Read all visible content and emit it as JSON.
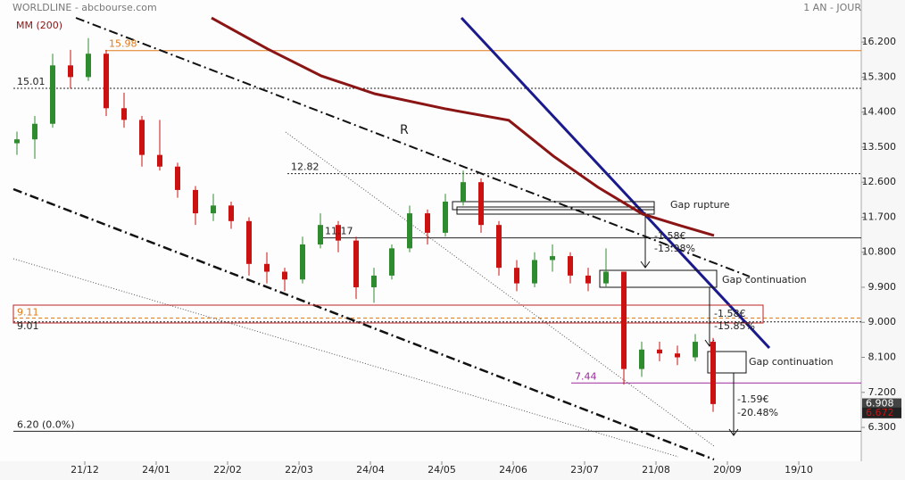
{
  "chart_data": {
    "type": "candlestick",
    "title": "WORLDLINE - abcbourse.com",
    "period": "1 AN - JOUR",
    "up_color": "#2e8b2e",
    "down_color": "#cc1111",
    "x": [
      -19,
      -14,
      -9,
      -4,
      1,
      6,
      11,
      16,
      21,
      26,
      31,
      36,
      41,
      46,
      51,
      56,
      61,
      66,
      71,
      76,
      81,
      86,
      91,
      96,
      101,
      106,
      111,
      116,
      121,
      126,
      131,
      136,
      141,
      146,
      151,
      156,
      161,
      166,
      171,
      176
    ],
    "open": [
      13.6,
      13.7,
      14.1,
      15.6,
      15.3,
      15.9,
      14.5,
      14.2,
      13.3,
      13.0,
      12.4,
      11.8,
      12.0,
      11.6,
      10.5,
      10.3,
      10.1,
      11.0,
      11.5,
      11.1,
      9.9,
      10.2,
      10.9,
      11.8,
      11.3,
      12.1,
      12.6,
      11.5,
      10.4,
      10.0,
      10.6,
      10.7,
      10.2,
      10.0,
      10.3,
      7.8,
      8.3,
      8.2,
      8.1,
      8.5
    ],
    "high": [
      13.9,
      14.3,
      15.9,
      16.0,
      16.3,
      16.0,
      14.9,
      14.3,
      14.2,
      13.1,
      12.5,
      12.3,
      12.1,
      11.7,
      10.8,
      10.4,
      11.2,
      11.8,
      11.6,
      11.2,
      10.4,
      11.0,
      12.0,
      11.9,
      12.3,
      12.9,
      12.7,
      11.6,
      10.6,
      10.8,
      11.0,
      10.8,
      10.4,
      10.9,
      10.3,
      8.5,
      8.5,
      8.4,
      8.7,
      8.6
    ],
    "low": [
      13.3,
      13.2,
      14.0,
      15.0,
      15.2,
      14.3,
      14.0,
      13.0,
      12.9,
      12.2,
      11.5,
      11.6,
      11.4,
      10.2,
      10.0,
      9.8,
      10.0,
      10.9,
      10.8,
      9.6,
      9.5,
      10.1,
      10.8,
      11.0,
      11.2,
      12.0,
      11.3,
      10.2,
      9.8,
      9.9,
      10.3,
      10.0,
      9.8,
      9.9,
      7.4,
      7.6,
      8.0,
      7.9,
      8.0,
      6.7
    ],
    "close": [
      13.7,
      14.1,
      15.6,
      15.3,
      15.9,
      14.5,
      14.2,
      13.3,
      13.0,
      12.4,
      11.8,
      12.0,
      11.6,
      10.5,
      10.3,
      10.1,
      11.0,
      11.5,
      11.1,
      9.9,
      10.2,
      10.9,
      11.8,
      11.3,
      12.1,
      12.6,
      11.5,
      10.4,
      10.0,
      10.6,
      10.7,
      10.2,
      10.0,
      10.3,
      7.8,
      8.3,
      8.2,
      8.1,
      8.5,
      6.9
    ],
    "ma": {
      "name": "MM (200)",
      "color": "#8b1414",
      "x": [
        35.5,
        51.25,
        66.25,
        81.25,
        101.25,
        118.75,
        131.25,
        143.75,
        156.25,
        166.25,
        176.25
      ],
      "values": [
        16.82,
        16.02,
        15.33,
        14.87,
        14.48,
        14.19,
        13.27,
        12.47,
        11.78,
        11.5,
        11.23
      ]
    },
    "xlim": [
      -23.75,
      216.25
    ],
    "xticks": [
      {
        "value": 0,
        "label": "21/12"
      },
      {
        "value": 20,
        "label": "24/01"
      },
      {
        "value": 40,
        "label": "22/02"
      },
      {
        "value": 60,
        "label": "22/03"
      },
      {
        "value": 80,
        "label": "24/04"
      },
      {
        "value": 100,
        "label": "24/05"
      },
      {
        "value": 120,
        "label": "24/06"
      },
      {
        "value": 140,
        "label": "23/07"
      },
      {
        "value": 160,
        "label": "21/08"
      },
      {
        "value": 180,
        "label": "20/09"
      },
      {
        "value": 200,
        "label": "19/10"
      }
    ],
    "ylim": [
      5.43,
      17.28
    ],
    "yticks": [
      {
        "value": 16.2,
        "label": "16.200"
      },
      {
        "value": 15.3,
        "label": "15.300"
      },
      {
        "value": 14.4,
        "label": "14.400"
      },
      {
        "value": 13.5,
        "label": "13.500"
      },
      {
        "value": 12.6,
        "label": "12.600"
      },
      {
        "value": 11.7,
        "label": "11.700"
      },
      {
        "value": 10.8,
        "label": "10.800"
      },
      {
        "value": 9.9,
        "label": "9.900"
      },
      {
        "value": 9.0,
        "label": "9.000"
      },
      {
        "value": 8.1,
        "label": "8.100"
      },
      {
        "value": 7.2,
        "label": "7.200"
      },
      {
        "value": 6.3,
        "label": "6.300"
      }
    ],
    "levels": [
      {
        "value": 15.98,
        "color": "#e07b1a",
        "style": "solid"
      },
      {
        "value": 15.01,
        "color": "#222222",
        "style": "dotted"
      },
      {
        "value": 12.82,
        "color": "#222222",
        "style": "dotted"
      },
      {
        "value": 11.17,
        "color": "#222222",
        "style": "solid"
      },
      {
        "value": 9.11,
        "color": "#e07b1a",
        "style": "dashed"
      },
      {
        "value": 9.01,
        "color": "#222222",
        "style": "dotted"
      },
      {
        "value": 7.44,
        "color": "#9b2a9b",
        "style": "solid"
      },
      {
        "value": 6.2,
        "label": "6.20 (0.0%)",
        "color": "#222222",
        "style": "solid"
      }
    ],
    "price_tags": [
      {
        "value": 6.908,
        "label": "6.908",
        "color": "#444444"
      },
      {
        "value": 6.672,
        "label": "6.672",
        "color": "#cc1111"
      }
    ],
    "annotations": {
      "r": "R",
      "gap_rupture": "Gap rupture",
      "gap_cont_1": "Gap continuation",
      "gap_cont_2": "Gap continuation",
      "d1_abs": "-1.58€",
      "d1_pct": "-13.98%",
      "d2_abs": "-1.58€",
      "d2_pct": "-15.85%",
      "d3_abs": "-1.59€",
      "d3_pct": "-20.48%"
    }
  }
}
